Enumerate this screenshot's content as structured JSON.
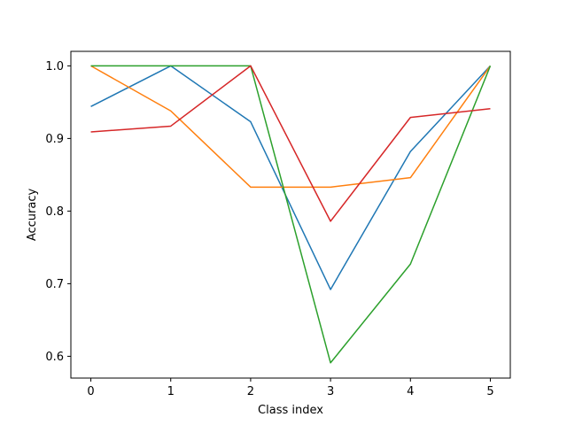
{
  "chart_data": {
    "type": "line",
    "title": "",
    "xlabel": "Class index",
    "ylabel": "Accuracy",
    "x": [
      0,
      1,
      2,
      3,
      4,
      5
    ],
    "xlim": [
      -0.25,
      5.25
    ],
    "ylim": [
      0.57,
      1.02
    ],
    "xticks": [
      0,
      1,
      2,
      3,
      4,
      5
    ],
    "yticks": [
      0.6,
      0.7,
      0.8,
      0.9,
      1.0
    ],
    "ytick_labels": [
      "0.6",
      "0.7",
      "0.8",
      "0.9",
      "1.0"
    ],
    "grid": false,
    "legend": "none",
    "series": [
      {
        "color": "#1f77b4",
        "values": [
          0.944,
          1.0,
          0.923,
          0.692,
          0.882,
          1.0
        ]
      },
      {
        "color": "#ff7f0e",
        "values": [
          1.0,
          0.938,
          0.833,
          0.833,
          0.846,
          1.0
        ]
      },
      {
        "color": "#2ca02c",
        "values": [
          1.0,
          1.0,
          1.0,
          0.591,
          0.727,
          1.0
        ]
      },
      {
        "color": "#d62728",
        "values": [
          0.909,
          0.917,
          1.0,
          0.786,
          0.929,
          0.941
        ]
      }
    ]
  }
}
